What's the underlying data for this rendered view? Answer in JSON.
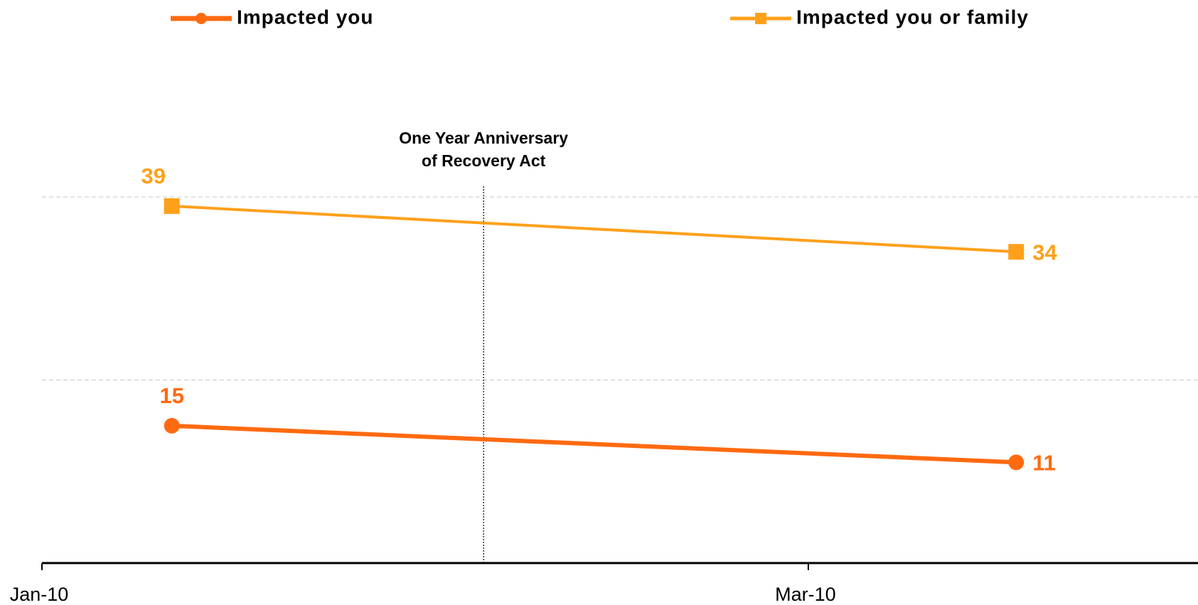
{
  "chart_data": {
    "type": "line",
    "x": [
      "2010-01-11",
      "2010-03-17"
    ],
    "series": [
      {
        "name": "Impacted you",
        "color": "#ff6a10",
        "marker": "circle",
        "values": [
          15,
          11
        ]
      },
      {
        "name": "Impacted you or family",
        "color": "#ffa01a",
        "marker": "square",
        "values": [
          39,
          34
        ]
      }
    ],
    "xlim": [
      "2010-01-01",
      "2010-03-31"
    ],
    "xticks": [
      {
        "value": "2010-01-01",
        "label": "Jan-10"
      },
      {
        "value": "2010-03-01",
        "label": "Mar-10"
      }
    ],
    "ylim": [
      0,
      40
    ],
    "yticks": [
      20,
      40
    ],
    "grid": true,
    "annotation": {
      "text": [
        "One Year Anniversary",
        "of Recovery Act"
      ],
      "x": "2010-02-04"
    }
  }
}
